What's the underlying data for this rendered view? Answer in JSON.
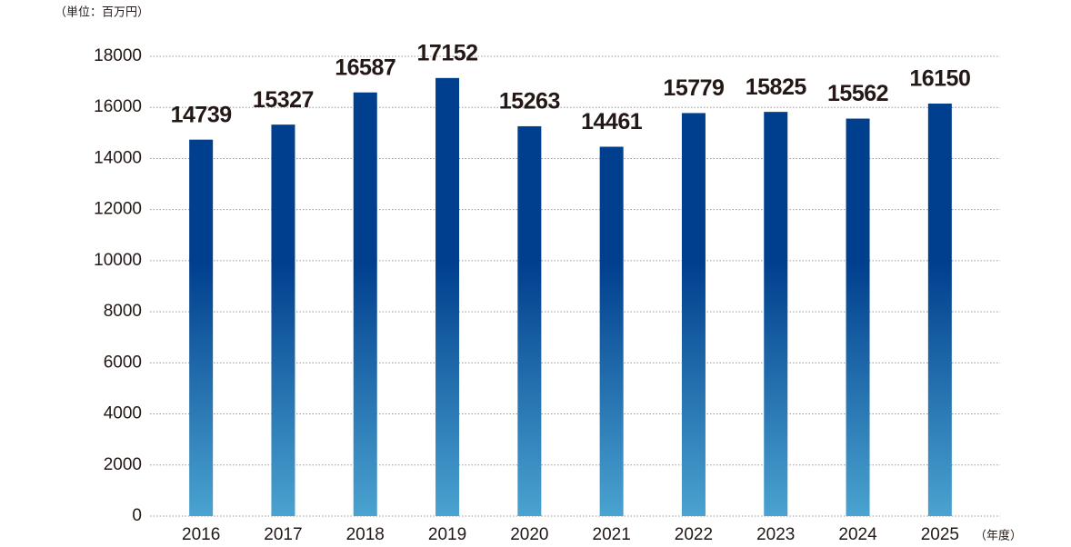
{
  "chart_data": {
    "type": "bar",
    "y_unit": "（単位：百万円）",
    "x_unit": "（年度）",
    "categories": [
      "2016",
      "2017",
      "2018",
      "2019",
      "2020",
      "2021",
      "2022",
      "2023",
      "2024",
      "2025"
    ],
    "values": [
      14739,
      15327,
      16587,
      17152,
      15263,
      14461,
      15779,
      15825,
      15562,
      16150
    ],
    "color": [
      "#003f8e",
      "#4aa3d0"
    ],
    "ylim": [
      0,
      18000
    ],
    "yticks": [
      0,
      2000,
      4000,
      6000,
      8000,
      10000,
      12000,
      14000,
      16000,
      18000
    ],
    "grid": true
  }
}
